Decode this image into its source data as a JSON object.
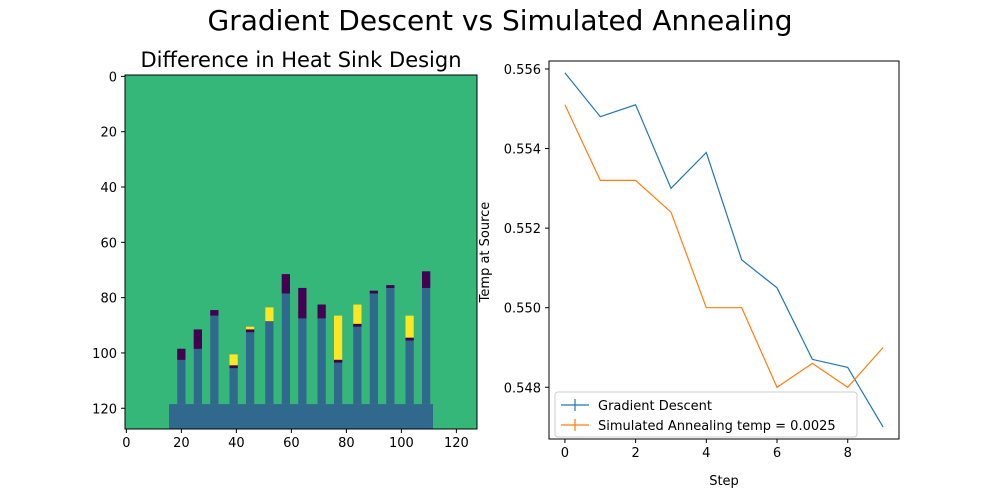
{
  "figure": {
    "suptitle": "Gradient Descent vs Simulated Annealing"
  },
  "chart_data": [
    {
      "type": "heatmap",
      "title": "Difference in Heat Sink Design",
      "xlabel": "",
      "ylabel": "",
      "xlim": [
        0,
        127
      ],
      "ylim": [
        127,
        0
      ],
      "x_ticks": [
        0,
        20,
        40,
        60,
        80,
        100,
        120
      ],
      "y_ticks": [
        0,
        20,
        40,
        60,
        80,
        100,
        120
      ],
      "colors": {
        "background": "#35b779",
        "sink": "#31688e",
        "removed": "#440154",
        "added": "#fde725"
      },
      "base": {
        "x0": 16,
        "x1": 112,
        "y0": 119,
        "y1": 127
      },
      "fins": [
        {
          "x": 19,
          "top": 99,
          "removed": [
            99,
            103
          ],
          "added": null
        },
        {
          "x": 25,
          "top": 92,
          "removed": [
            92,
            99
          ],
          "added": null
        },
        {
          "x": 31,
          "top": 85,
          "removed": [
            85,
            87
          ],
          "added": null
        },
        {
          "x": 38,
          "top": 101,
          "removed": [
            105,
            106
          ],
          "added": [
            101,
            105
          ]
        },
        {
          "x": 44,
          "top": 91,
          "removed": [
            92,
            93
          ],
          "added": [
            91,
            92
          ]
        },
        {
          "x": 51,
          "top": 84,
          "removed": null,
          "added": [
            84,
            89
          ]
        },
        {
          "x": 57,
          "top": 72,
          "removed": [
            72,
            79
          ],
          "added": null
        },
        {
          "x": 63,
          "top": 77,
          "removed": [
            77,
            88
          ],
          "added": null
        },
        {
          "x": 70,
          "top": 83,
          "removed": [
            83,
            88
          ],
          "added": null
        },
        {
          "x": 76,
          "top": 87,
          "removed": [
            103,
            104
          ],
          "added": [
            87,
            103
          ]
        },
        {
          "x": 83,
          "top": 83,
          "removed": [
            90,
            91
          ],
          "added": [
            83,
            90
          ]
        },
        {
          "x": 89,
          "top": 78,
          "removed": [
            78,
            79
          ],
          "added": null
        },
        {
          "x": 95,
          "top": 76,
          "removed": [
            76,
            77
          ],
          "added": null
        },
        {
          "x": 102,
          "top": 87,
          "removed": [
            95,
            96
          ],
          "added": [
            87,
            95
          ]
        },
        {
          "x": 108,
          "top": 71,
          "removed": [
            71,
            77
          ],
          "added": null
        }
      ]
    },
    {
      "type": "line",
      "title": "",
      "xlabel": "Step",
      "ylabel": "Temp at Source",
      "x": [
        0,
        1,
        2,
        3,
        4,
        5,
        6,
        7,
        8,
        9
      ],
      "xlim": [
        -0.45,
        9.45
      ],
      "ylim": [
        0.5467,
        0.5562
      ],
      "x_ticks": [
        0,
        2,
        4,
        6,
        8
      ],
      "y_ticks": [
        0.548,
        0.55,
        0.552,
        0.554,
        0.556
      ],
      "y_tick_labels": [
        "0.548",
        "0.550",
        "0.552",
        "0.554",
        "0.556"
      ],
      "series": [
        {
          "name": "Gradient Descent",
          "color": "#1f77b4",
          "values": [
            0.5559,
            0.5548,
            0.5551,
            0.553,
            0.5539,
            0.5512,
            0.5505,
            0.5487,
            0.5485,
            0.547
          ]
        },
        {
          "name": "Simulated Annealing temp = 0.0025",
          "color": "#ff7f0e",
          "values": [
            0.5551,
            0.5532,
            0.5532,
            0.5524,
            0.55,
            0.55,
            0.548,
            0.5486,
            0.548,
            0.549
          ]
        }
      ],
      "legend_position": "lower-left"
    }
  ]
}
